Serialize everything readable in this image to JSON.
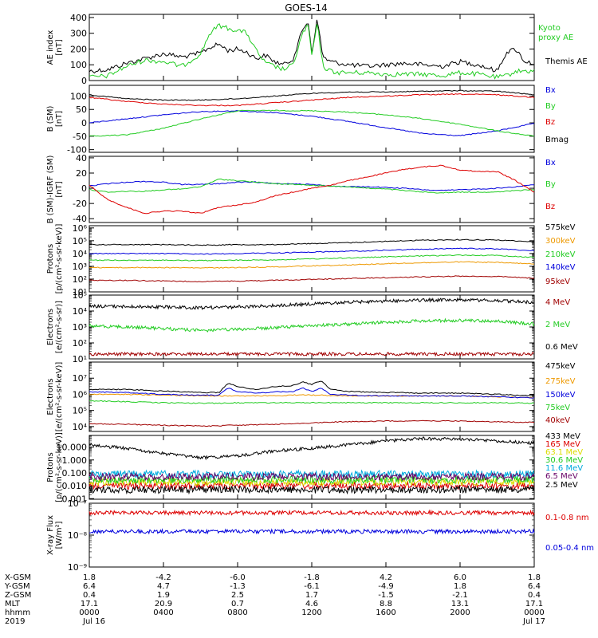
{
  "title": "GOES-14",
  "colors": {
    "black": "#000000",
    "green": "#22cc22",
    "blue": "#0000dd",
    "red": "#dd0000",
    "darkred": "#a00000",
    "orange": "#ee9900",
    "cyan": "#00aadd",
    "yellow": "#dddd00",
    "purple": "#660066"
  },
  "chart_data": [
    {
      "id": "ae",
      "type": "line",
      "ylabel": [
        "AE index",
        "[nT]"
      ],
      "ylim": [
        0,
        420
      ],
      "yscale": "linear",
      "yticks": [
        0,
        100,
        200,
        300,
        400
      ],
      "ytick_labels": [
        "0",
        "100",
        "200",
        "300",
        "400"
      ],
      "x": [
        0,
        1,
        2,
        3,
        4,
        5,
        5.5,
        6,
        6.5,
        7,
        7.5,
        8,
        8.5,
        9,
        9.5,
        10,
        10.5,
        11,
        11.5,
        11.8,
        12,
        12.3,
        12.6,
        13,
        13.5,
        14,
        15,
        16,
        17,
        18,
        19,
        20,
        21,
        22,
        22.5,
        23,
        23.5,
        24
      ],
      "series": [
        {
          "name": "Themis AE",
          "color_key": "black",
          "values": [
            60,
            70,
            110,
            140,
            170,
            150,
            160,
            175,
            210,
            230,
            190,
            200,
            180,
            140,
            160,
            120,
            100,
            140,
            320,
            380,
            180,
            390,
            150,
            120,
            110,
            100,
            90,
            100,
            110,
            100,
            90,
            120,
            100,
            60,
            180,
            200,
            120,
            110
          ]
        },
        {
          "name": "Kyoto proxy AE",
          "color_key": "green",
          "values": [
            20,
            30,
            90,
            130,
            120,
            90,
            130,
            170,
            300,
            350,
            330,
            320,
            300,
            190,
            110,
            90,
            70,
            100,
            300,
            350,
            160,
            360,
            90,
            60,
            50,
            50,
            50,
            40,
            40,
            40,
            30,
            50,
            40,
            20,
            30,
            60,
            60,
            60
          ]
        }
      ],
      "legend": [
        "Kyoto",
        "proxy AE",
        "Themis AE"
      ]
    },
    {
      "id": "bsm",
      "type": "line",
      "ylabel": [
        "B (SM)",
        "[nT]"
      ],
      "ylim": [
        -110,
        140
      ],
      "yscale": "linear",
      "yticks": [
        -100,
        -50,
        0,
        50,
        100
      ],
      "ytick_labels": [
        "-100",
        "-50",
        "0",
        "50",
        "100"
      ],
      "x": [
        0,
        2,
        4,
        6,
        8,
        10,
        12,
        14,
        16,
        18,
        20,
        22,
        24
      ],
      "series": [
        {
          "name": "Bx",
          "color_key": "blue",
          "values": [
            0,
            15,
            30,
            42,
            45,
            38,
            25,
            5,
            -18,
            -40,
            -48,
            -30,
            -2
          ]
        },
        {
          "name": "By",
          "color_key": "green",
          "values": [
            -50,
            -45,
            -20,
            15,
            45,
            46,
            45,
            40,
            30,
            15,
            -5,
            -30,
            -50
          ]
        },
        {
          "name": "Bz",
          "color_key": "red",
          "values": [
            95,
            80,
            70,
            65,
            65,
            75,
            85,
            95,
            100,
            105,
            107,
            105,
            95
          ]
        },
        {
          "name": "Bmag",
          "color_key": "black",
          "values": [
            105,
            90,
            85,
            85,
            90,
            100,
            110,
            115,
            115,
            118,
            120,
            118,
            105
          ]
        }
      ]
    },
    {
      "id": "bsm_igrf",
      "type": "line",
      "ylabel": [
        "B (SM)-IGRF (SM)",
        "[nT]"
      ],
      "ylim": [
        -45,
        42
      ],
      "yscale": "linear",
      "yticks": [
        -40,
        -20,
        0,
        20,
        40
      ],
      "ytick_labels": [
        "-40",
        "-20",
        "0",
        "20",
        "40"
      ],
      "x": [
        0,
        1,
        2,
        3,
        4,
        5,
        6,
        7,
        8,
        9,
        10,
        11,
        12,
        13,
        14,
        15,
        16,
        17,
        18,
        19,
        20,
        21,
        22,
        23,
        24
      ],
      "series": [
        {
          "name": "Bx",
          "color_key": "blue",
          "values": [
            3,
            6,
            8,
            9,
            8,
            5,
            5,
            6,
            8,
            8,
            6,
            6,
            5,
            3,
            2,
            2,
            1,
            0,
            -2,
            -3,
            -2,
            -1,
            0,
            2,
            5
          ]
        },
        {
          "name": "By",
          "color_key": "green",
          "values": [
            -2,
            -5,
            -4,
            -4,
            -2,
            -1,
            2,
            12,
            10,
            8,
            6,
            5,
            4,
            3,
            2,
            0,
            -1,
            -3,
            -5,
            -6,
            -5,
            -5,
            -5,
            -3,
            -2
          ]
        },
        {
          "name": "Bz",
          "color_key": "red",
          "values": [
            4,
            -15,
            -25,
            -33,
            -30,
            -30,
            -33,
            -25,
            -22,
            -18,
            -10,
            -5,
            0,
            4,
            10,
            15,
            20,
            25,
            28,
            30,
            24,
            22,
            22,
            10,
            -5
          ]
        }
      ]
    },
    {
      "id": "protons_hi",
      "type": "line",
      "ylabel": [
        "Protons",
        "[p/(cm²-s-sr-keV)]"
      ],
      "ylim": [
        10.0,
        1500000.0
      ],
      "yscale": "log",
      "yticks": [
        10,
        100,
        1000,
        10000,
        100000,
        1000000
      ],
      "x": [
        0,
        2,
        4,
        6,
        8,
        10,
        12,
        14,
        16,
        18,
        20,
        22,
        24
      ],
      "series": [
        {
          "name": "575keV",
          "color_key": "black",
          "values": [
            50000.0,
            50000.0,
            50000.0,
            45000.0,
            50000.0,
            50000.0,
            60000.0,
            70000.0,
            90000.0,
            110000.0,
            120000.0,
            115000.0,
            80000.0
          ]
        },
        {
          "name": "300keV",
          "color_key": "orange",
          "values": [
            800,
            800,
            800,
            750,
            800,
            900,
            1100,
            1300,
            1600,
            1900,
            2200,
            2000,
            1500
          ]
        },
        {
          "name": "210keV",
          "color_key": "green",
          "values": [
            3000,
            3000,
            3000,
            2800,
            3000,
            3200,
            3800,
            4500,
            5500,
            6500,
            7500,
            7000,
            5000
          ]
        },
        {
          "name": "140keV",
          "color_key": "blue",
          "values": [
            10000.0,
            10000.0,
            10000.0,
            9000.0,
            10000.0,
            11000.0,
            13000.0,
            15000.0,
            18000.0,
            22000.0,
            25000.0,
            23000.0,
            17000.0
          ]
        },
        {
          "name": "95keV",
          "color_key": "darkred",
          "values": [
            80,
            80,
            70,
            65,
            70,
            80,
            95,
            110,
            130,
            150,
            170,
            160,
            120
          ]
        }
      ]
    },
    {
      "id": "electrons_mev",
      "type": "line",
      "ylabel": [
        "Electrons",
        "[e/(cm²-s-sr)]"
      ],
      "ylim": [
        10.0,
        100000.0
      ],
      "yscale": "log",
      "yticks": [
        10,
        100,
        1000,
        10000,
        100000
      ],
      "x": [
        0,
        2,
        4,
        6,
        8,
        10,
        12,
        14,
        16,
        18,
        20,
        22,
        24
      ],
      "series": [
        {
          "name": "4 MeV",
          "color_key": "darkred",
          "values": [
            20,
            20,
            20,
            20,
            20,
            20,
            20,
            20,
            20,
            20,
            20,
            20,
            20
          ]
        },
        {
          "name": "2 MeV",
          "color_key": "green",
          "values": [
            1200,
            1000,
            800,
            600,
            700,
            900,
            1200,
            1500,
            2000,
            2400,
            2600,
            2300,
            1500
          ]
        },
        {
          "name": "0.6 MeV",
          "color_key": "black",
          "values": [
            20000.0,
            19000.0,
            18000.0,
            16000.0,
            18000.0,
            22000.0,
            28000.0,
            35000.0,
            42000.0,
            48000.0,
            50000.0,
            45000.0,
            35000.0
          ]
        }
      ]
    },
    {
      "id": "electrons_kev",
      "type": "line",
      "ylabel": [
        "Electrons",
        "[e/(cm²-s-sr-keV)]"
      ],
      "ylim": [
        5000.0,
        100000000.0
      ],
      "yscale": "log",
      "yticks": [
        10000,
        100000,
        1000000,
        10000000
      ],
      "x": [
        0,
        2,
        4,
        6,
        7,
        7.5,
        8,
        9,
        10,
        11,
        11.5,
        12,
        12.5,
        13,
        14,
        16,
        18,
        20,
        22,
        24
      ],
      "series": [
        {
          "name": "475keV",
          "color_key": "black",
          "values": [
            2000000.0,
            2000000.0,
            1600000.0,
            1300000.0,
            1300000.0,
            5000000.0,
            3000000.0,
            2000000.0,
            3000000.0,
            3500000.0,
            6000000.0,
            4000000.0,
            7000000.0,
            2000000.0,
            1500000.0,
            1300000.0,
            1200000.0,
            1200000.0,
            1000000.0,
            800000.0
          ]
        },
        {
          "name": "275keV",
          "color_key": "orange",
          "values": [
            1000000.0,
            1000000.0,
            900000.0,
            800000.0,
            800000.0,
            800000.0,
            800000.0,
            800000.0,
            800000.0,
            900000.0,
            900000.0,
            900000.0,
            900000.0,
            800000.0,
            800000.0,
            800000.0,
            800000.0,
            800000.0,
            700000.0,
            600000.0
          ]
        },
        {
          "name": "150keV",
          "color_key": "blue",
          "values": [
            1400000.0,
            1300000.0,
            1000000.0,
            900000.0,
            900000.0,
            2500000.0,
            1500000.0,
            1200000.0,
            1400000.0,
            1500000.0,
            2500000.0,
            1500000.0,
            2500000.0,
            1000000.0,
            900000.0,
            800000.0,
            800000.0,
            800000.0,
            700000.0,
            600000.0
          ]
        },
        {
          "name": "75keV",
          "color_key": "green",
          "values": [
            400000.0,
            350000.0,
            300000.0,
            280000.0,
            280000.0,
            300000.0,
            300000.0,
            300000.0,
            300000.0,
            300000.0,
            300000.0,
            300000.0,
            300000.0,
            300000.0,
            300000.0,
            300000.0,
            300000.0,
            300000.0,
            300000.0,
            280000.0
          ]
        },
        {
          "name": "40keV",
          "color_key": "darkred",
          "values": [
            15000.0,
            14000.0,
            12000.0,
            11000.0,
            11000.0,
            12000.0,
            12000.0,
            13000.0,
            14000.0,
            15000.0,
            16000.0,
            17000.0,
            18000.0,
            19000.0,
            20000.0,
            22000.0,
            23000.0,
            22000.0,
            20000.0,
            18000.0
          ]
        }
      ]
    },
    {
      "id": "protons_mev",
      "type": "line",
      "ylabel": [
        "Protons",
        "[p/(cm²-s-sr-keV)]"
      ],
      "ylim": [
        0.0009,
        80
      ],
      "yscale": "log",
      "yticks": [
        0.001,
        0.01,
        0.1,
        1,
        10
      ],
      "ytick_labels": [
        "0.001",
        "0.010",
        "0.100",
        "1.000",
        "10.000"
      ],
      "x": [
        0,
        2,
        4,
        6,
        8,
        10,
        12,
        14,
        16,
        18,
        20,
        22,
        24
      ],
      "series": [
        {
          "name": "433 MeV",
          "color_key": "black",
          "values": [
            15,
            8,
            3,
            1.5,
            2,
            5,
            8,
            15,
            30,
            45,
            40,
            30,
            20
          ]
        },
        {
          "name": "165 MeV",
          "color_key": "red",
          "values": [
            0.01,
            0.01,
            0.01,
            0.01,
            0.01,
            0.01,
            0.01,
            0.01,
            0.01,
            0.01,
            0.01,
            0.01,
            0.01
          ]
        },
        {
          "name": "63.1 MeV",
          "color_key": "yellow",
          "values": [
            0.02,
            0.02,
            0.02,
            0.02,
            0.02,
            0.02,
            0.02,
            0.02,
            0.02,
            0.02,
            0.02,
            0.02,
            0.02
          ]
        },
        {
          "name": "30.6 MeV",
          "color_key": "green",
          "values": [
            0.03,
            0.03,
            0.03,
            0.03,
            0.03,
            0.03,
            0.03,
            0.03,
            0.03,
            0.03,
            0.03,
            0.03,
            0.03
          ]
        },
        {
          "name": "11.6 MeV",
          "color_key": "cyan",
          "values": [
            0.08,
            0.08,
            0.08,
            0.08,
            0.08,
            0.08,
            0.08,
            0.08,
            0.08,
            0.08,
            0.08,
            0.08,
            0.08
          ]
        },
        {
          "name": "6.5 MeV",
          "color_key": "purple",
          "values": [
            0.05,
            0.05,
            0.05,
            0.05,
            0.05,
            0.05,
            0.05,
            0.05,
            0.05,
            0.05,
            0.05,
            0.05,
            0.05
          ]
        },
        {
          "name": "2.5 MeV",
          "color_key": "black",
          "values": [
            0.005,
            0.005,
            0.005,
            0.005,
            0.005,
            0.005,
            0.005,
            0.005,
            0.005,
            0.005,
            0.005,
            0.005,
            0.005
          ]
        }
      ]
    },
    {
      "id": "xray",
      "type": "line",
      "ylabel": [
        "X-ray Flux",
        "[W/m²]"
      ],
      "ylim": [
        1e-09,
        1e-07
      ],
      "yscale": "log",
      "yticks": [
        1e-09,
        1e-08,
        1e-07
      ],
      "ytick_labels": [
        "10⁻⁹",
        "10⁻⁸",
        "10⁻⁷"
      ],
      "x": [
        0,
        4,
        8,
        12,
        16,
        20,
        24
      ],
      "series": [
        {
          "name": "0.1-0.8 nm",
          "color_key": "red",
          "values": [
            5e-08,
            5e-08,
            5e-08,
            5e-08,
            5e-08,
            5e-08,
            5e-08
          ]
        },
        {
          "name": "0.05-0.4 nm",
          "color_key": "blue",
          "values": [
            1.3e-08,
            1.3e-08,
            1.3e-08,
            1.3e-08,
            1.3e-08,
            1.3e-08,
            1.3e-08
          ]
        }
      ]
    }
  ],
  "x_axis": {
    "xlim": [
      0,
      24
    ],
    "tick_positions": [
      0,
      4,
      8,
      12,
      16,
      20,
      24
    ],
    "row_labels": [
      "X-GSM",
      "Y-GSM",
      "Z-GSM",
      "MLT",
      "hhmm",
      "2019"
    ],
    "rows": [
      [
        "1.8",
        "-4.2",
        "-6.0",
        "-1.8",
        "4.2",
        "6.0",
        "1.8"
      ],
      [
        "6.4",
        "4.7",
        "-1.3",
        "-6.1",
        "-4.9",
        "1.8",
        "6.4"
      ],
      [
        "0.4",
        "1.9",
        "2.5",
        "1.7",
        "-1.5",
        "-2.1",
        "0.4"
      ],
      [
        "17.1",
        "20.9",
        "0.7",
        "4.6",
        "8.8",
        "13.1",
        "17.1"
      ],
      [
        "0000",
        "0400",
        "0800",
        "1200",
        "1600",
        "2000",
        "0000"
      ],
      [
        "Jul 16",
        "",
        "",
        "",
        "",
        "",
        "Jul 17"
      ]
    ]
  }
}
